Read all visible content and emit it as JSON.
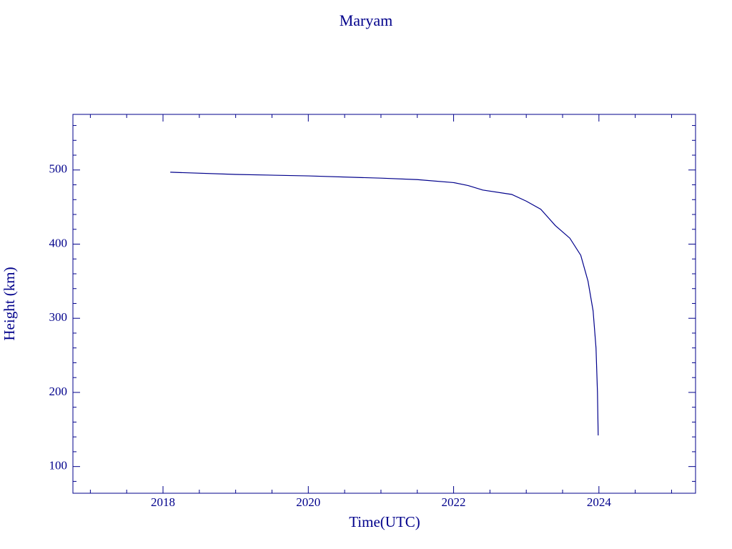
{
  "chart_data": {
    "type": "line",
    "title": "Maryam",
    "x_label": "Time(UTC)",
    "y_label": "Height (km)",
    "color": "#00008b",
    "xlim": [
      2016.76,
      2025.33
    ],
    "ylim": [
      64,
      575
    ],
    "xticks": [
      2018,
      2020,
      2022,
      2024
    ],
    "yticks": [
      100,
      200,
      300,
      400,
      500
    ],
    "xminorticks": [
      2017,
      2017.5,
      2018.5,
      2019,
      2019.5,
      2020.5,
      2021,
      2021.5,
      2022.5,
      2023,
      2023.5,
      2024.5,
      2025
    ],
    "yminorticks": [
      80,
      120,
      140,
      160,
      180,
      220,
      240,
      260,
      280,
      320,
      340,
      360,
      380,
      420,
      440,
      460,
      480,
      520,
      540,
      560
    ],
    "series": [
      {
        "name": "Maryam",
        "x": [
          2018.1,
          2019,
          2020,
          2021,
          2021.5,
          2022,
          2022.2,
          2022.4,
          2022.8,
          2023.0,
          2023.2,
          2023.4,
          2023.6,
          2023.75,
          2023.85,
          2023.92,
          2023.96,
          2023.98,
          2023.99
        ],
        "values": [
          497,
          494,
          492,
          489,
          487,
          483,
          479,
          473,
          467,
          458,
          447,
          425,
          408,
          385,
          350,
          310,
          260,
          200,
          142
        ]
      }
    ]
  }
}
